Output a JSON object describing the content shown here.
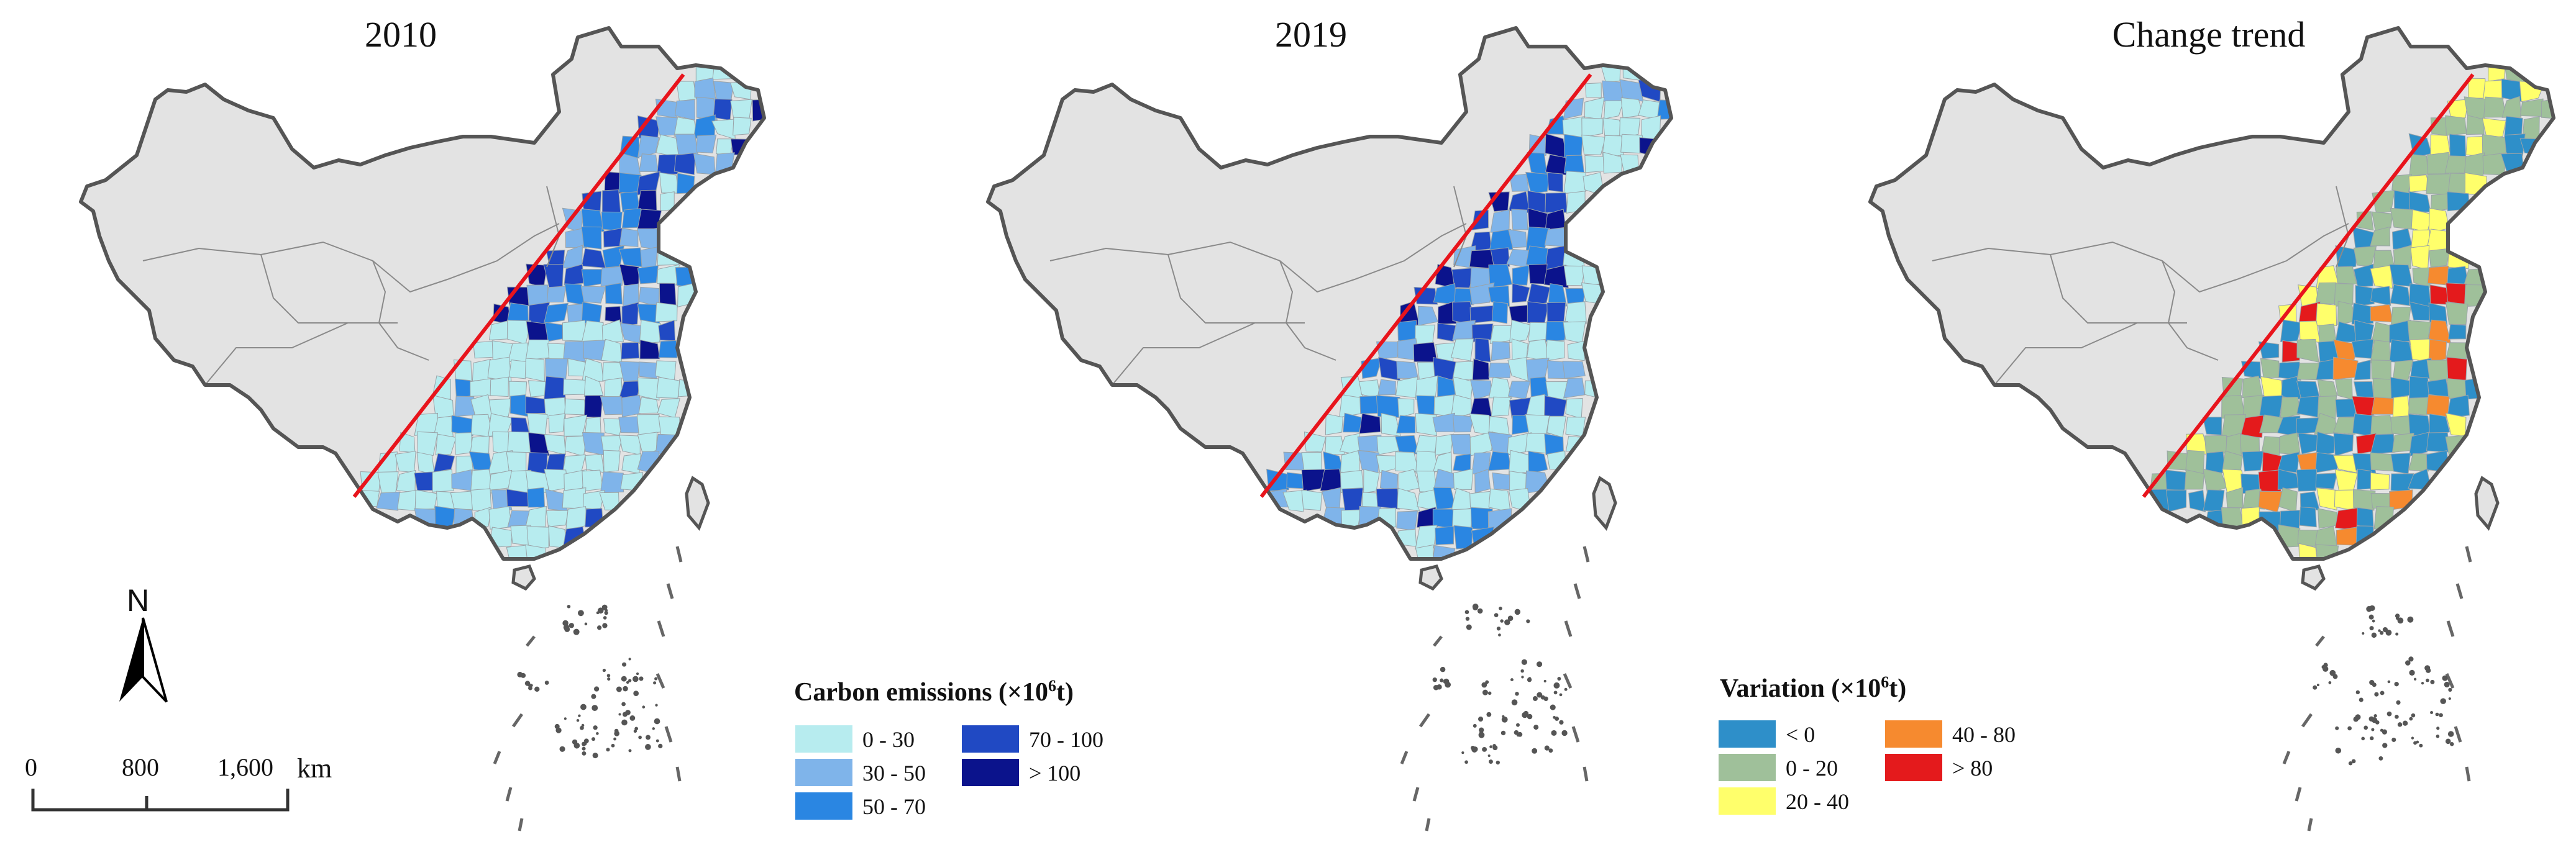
{
  "panels": [
    {
      "title": "2010",
      "scheme": "carbon_2010"
    },
    {
      "title": "2019",
      "scheme": "carbon_2019"
    },
    {
      "title": "Change trend",
      "scheme": "variation"
    }
  ],
  "compass": {
    "letter": "N",
    "icon": "north-arrow-icon"
  },
  "scale_bar": {
    "ticks": [
      "0",
      "800",
      "1,600"
    ],
    "unit": "km"
  },
  "legend_carbon": {
    "title_prefix": "Carbon emissions (×10",
    "title_sup": "6",
    "title_suffix": "t)",
    "classes": [
      {
        "label": "0 - 30",
        "color": "#b7ecef"
      },
      {
        "label": "30 - 50",
        "color": "#7fb4ea"
      },
      {
        "label": "50 - 70",
        "color": "#2a86e2"
      },
      {
        "label": "70 - 100",
        "color": "#2049c3"
      },
      {
        "label": "> 100",
        "color": "#0b138c"
      }
    ]
  },
  "legend_variation": {
    "title_prefix": "Variation (×10",
    "title_sup": "6",
    "title_suffix": "t)",
    "classes": [
      {
        "label": "< 0",
        "color": "#2e8fc9"
      },
      {
        "label": "0 - 20",
        "color": "#9fc09a"
      },
      {
        "label": "20 - 40",
        "color": "#ffff6b"
      },
      {
        "label": "40 - 80",
        "color": "#f68a2f"
      },
      {
        "label": "> 80",
        "color": "#e41a1c"
      }
    ]
  },
  "colors": {
    "land": "#e3e3e3",
    "border": "#555555",
    "province_line": "#8a8a8a",
    "hu_line": "#e8141c"
  }
}
